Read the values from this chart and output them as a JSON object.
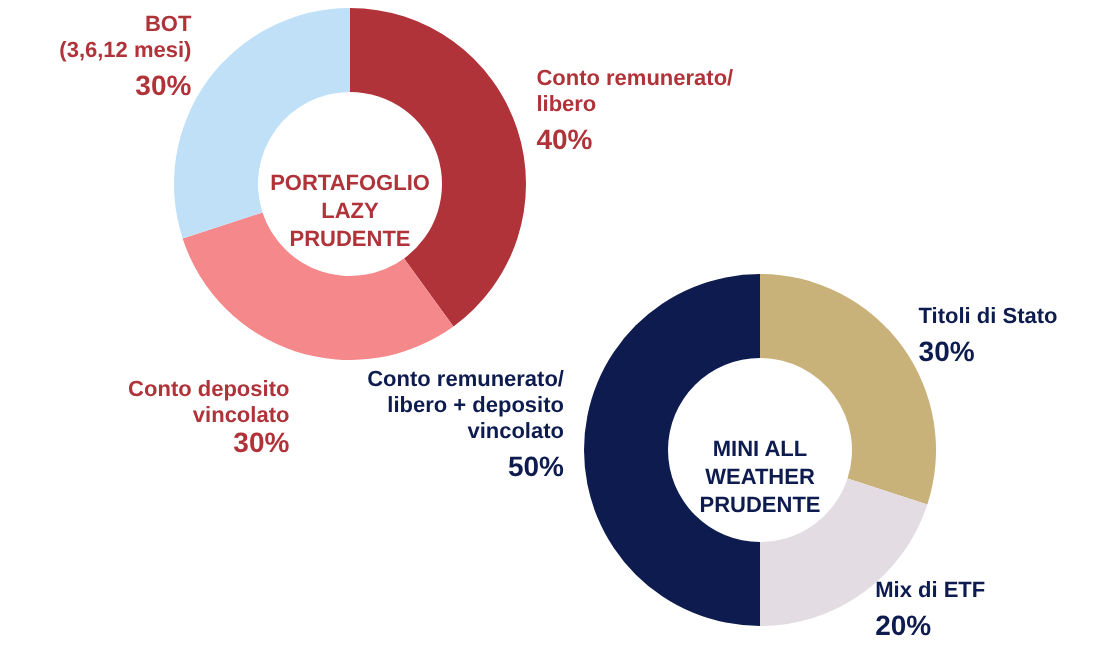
{
  "chart_data": [
    {
      "type": "donut",
      "title": "PORTAFOGLIO\nLAZY\nPRUDENTE",
      "categories": [
        "Conto remunerato/\nlibero",
        "Conto deposito\nvincolato",
        "BOT\n(3,6,12 mesi)"
      ],
      "values": [
        40,
        30,
        30
      ],
      "value_labels": [
        "40%",
        "30%",
        "30%"
      ],
      "colors": [
        "#b0333a",
        "#f4888a",
        "#bfe0f7"
      ]
    },
    {
      "type": "donut",
      "title": "MINI ALL\nWEATHER\nPRUDENTE",
      "categories": [
        "Titoli di Stato",
        "Mix di ETF",
        "Conto remunerato/\nlibero + deposito\nvincolato"
      ],
      "values": [
        30,
        20,
        50
      ],
      "value_labels": [
        "30%",
        "20%",
        "50%"
      ],
      "colors": [
        "#c9b27a",
        "#e3dde3",
        "#0d1b4f"
      ]
    }
  ]
}
